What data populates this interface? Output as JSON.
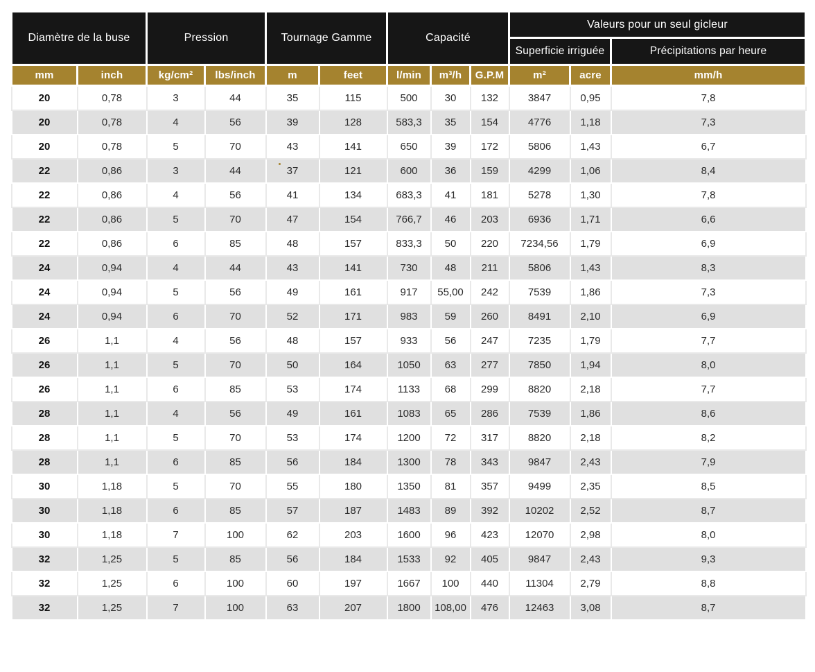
{
  "colors": {
    "header_bg": "#161616",
    "unit_row_bg": "#a5832f",
    "stripe_bg": "#e0e0e0",
    "header_text": "#ffffff",
    "data_text": "#2b2b2b"
  },
  "table": {
    "header": {
      "diametre": "Diamètre de la buse",
      "pression": "Pression",
      "tournage": "Tournage Gamme",
      "capacite": "Capacité",
      "valeurs": "Valeurs pour un seul gicleur",
      "superficie": "Superficie irriguée",
      "precipitations": "Précipitations par heure"
    },
    "units": [
      "mm",
      "inch",
      "kg/cm²",
      "lbs/inch",
      "m",
      "feet",
      "l/min",
      "m³/h",
      "G.P.M",
      "m²",
      "acre",
      "mm/h"
    ],
    "rows": [
      [
        "20",
        "0,78",
        "3",
        "44",
        "35",
        "115",
        "500",
        "30",
        "132",
        "3847",
        "0,95",
        "7,8"
      ],
      [
        "20",
        "0,78",
        "4",
        "56",
        "39",
        "128",
        "583,3",
        "35",
        "154",
        "4776",
        "1,18",
        "7,3"
      ],
      [
        "20",
        "0,78",
        "5",
        "70",
        "43",
        "141",
        "650",
        "39",
        "172",
        "5806",
        "1,43",
        "6,7"
      ],
      [
        "22",
        "0,86",
        "3",
        "44",
        "37",
        "121",
        "600",
        "36",
        "159",
        "4299",
        "1,06",
        "8,4"
      ],
      [
        "22",
        "0,86",
        "4",
        "56",
        "41",
        "134",
        "683,3",
        "41",
        "181",
        "5278",
        "1,30",
        "7,8"
      ],
      [
        "22",
        "0,86",
        "5",
        "70",
        "47",
        "154",
        "766,7",
        "46",
        "203",
        "6936",
        "1,71",
        "6,6"
      ],
      [
        "22",
        "0,86",
        "6",
        "85",
        "48",
        "157",
        "833,3",
        "50",
        "220",
        "7234,56",
        "1,79",
        "6,9"
      ],
      [
        "24",
        "0,94",
        "4",
        "44",
        "43",
        "141",
        "730",
        "48",
        "211",
        "5806",
        "1,43",
        "8,3"
      ],
      [
        "24",
        "0,94",
        "5",
        "56",
        "49",
        "161",
        "917",
        "55,00",
        "242",
        "7539",
        "1,86",
        "7,3"
      ],
      [
        "24",
        "0,94",
        "6",
        "70",
        "52",
        "171",
        "983",
        "59",
        "260",
        "8491",
        "2,10",
        "6,9"
      ],
      [
        "26",
        "1,1",
        "4",
        "56",
        "48",
        "157",
        "933",
        "56",
        "247",
        "7235",
        "1,79",
        "7,7"
      ],
      [
        "26",
        "1,1",
        "5",
        "70",
        "50",
        "164",
        "1050",
        "63",
        "277",
        "7850",
        "1,94",
        "8,0"
      ],
      [
        "26",
        "1,1",
        "6",
        "85",
        "53",
        "174",
        "1133",
        "68",
        "299",
        "8820",
        "2,18",
        "7,7"
      ],
      [
        "28",
        "1,1",
        "4",
        "56",
        "49",
        "161",
        "1083",
        "65",
        "286",
        "7539",
        "1,86",
        "8,6"
      ],
      [
        "28",
        "1,1",
        "5",
        "70",
        "53",
        "174",
        "1200",
        "72",
        "317",
        "8820",
        "2,18",
        "8,2"
      ],
      [
        "28",
        "1,1",
        "6",
        "85",
        "56",
        "184",
        "1300",
        "78",
        "343",
        "9847",
        "2,43",
        "7,9"
      ],
      [
        "30",
        "1,18",
        "5",
        "70",
        "55",
        "180",
        "1350",
        "81",
        "357",
        "9499",
        "2,35",
        "8,5"
      ],
      [
        "30",
        "1,18",
        "6",
        "85",
        "57",
        "187",
        "1483",
        "89",
        "392",
        "10202",
        "2,52",
        "8,7"
      ],
      [
        "30",
        "1,18",
        "7",
        "100",
        "62",
        "203",
        "1600",
        "96",
        "423",
        "12070",
        "2,98",
        "8,0"
      ],
      [
        "32",
        "1,25",
        "5",
        "85",
        "56",
        "184",
        "1533",
        "92",
        "405",
        "9847",
        "2,43",
        "9,3"
      ],
      [
        "32",
        "1,25",
        "6",
        "100",
        "60",
        "197",
        "1667",
        "100",
        "440",
        "11304",
        "2,79",
        "8,8"
      ],
      [
        "32",
        "1,25",
        "7",
        "100",
        "63",
        "207",
        "1800",
        "108,00",
        "476",
        "12463",
        "3,08",
        "8,7"
      ]
    ]
  }
}
